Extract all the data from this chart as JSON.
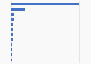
{
  "values": [
    100,
    22,
    4,
    3.5,
    3,
    2.8,
    2.5,
    2.2,
    2.0,
    1.8,
    1.5,
    1.2
  ],
  "bar_color": "#4472c4",
  "background_color": "#f9f9f9",
  "plot_bg_color": "#f9f9f9",
  "grid_color": "#dddddd",
  "n_bars": 12,
  "xlim": [
    0,
    115
  ]
}
